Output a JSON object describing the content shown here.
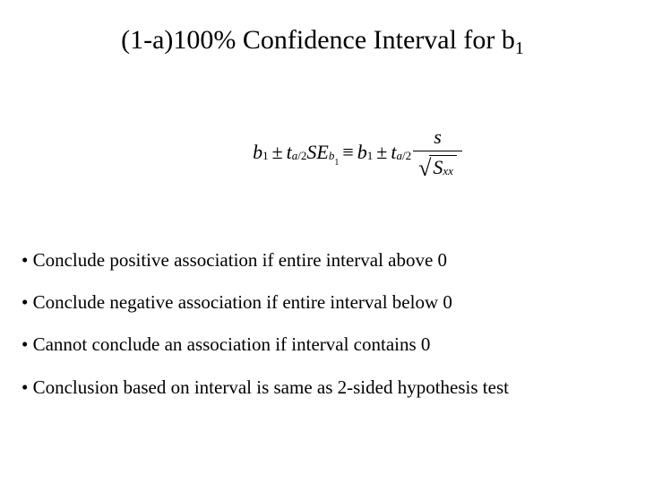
{
  "title": {
    "prefix": "(1-",
    "alpha": "a",
    "mid": ")100% Confidence Interval for ",
    "beta": "b",
    "sub": "1"
  },
  "formula": {
    "b": "b",
    "one": "1",
    "pm": "±",
    "t": "t",
    "alpha": "a",
    "slash2": "/2",
    "SE": "SE",
    "equiv": "≡",
    "s": "s",
    "S": "S",
    "xx": "xx"
  },
  "bullets": [
    "Conclude positive association if entire interval above 0",
    "Conclude negative association if entire interval below 0",
    "Cannot conclude an association if interval contains 0",
    "Conclusion based on interval is same as 2-sided hypothesis test"
  ],
  "style": {
    "background": "#ffffff",
    "text_color": "#000000",
    "title_fontsize": 30,
    "formula_fontsize": 22,
    "bullet_fontsize": 21
  }
}
